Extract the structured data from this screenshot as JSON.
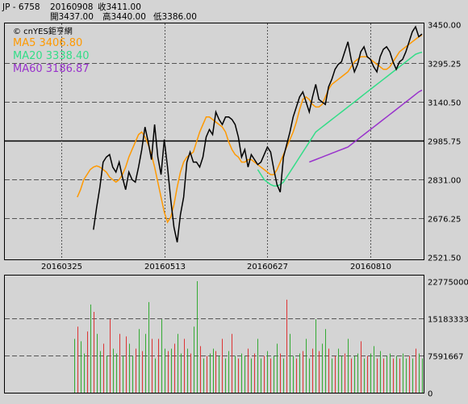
{
  "header": {
    "symbol": "JP - 6758",
    "date": "20160908",
    "close": "收3411.00",
    "open": "開3437.00",
    "high": "高3440.00",
    "low": "低3386.00"
  },
  "legend": {
    "source": "© cnYES鉅亨網",
    "ma5": "MA5 3406.80",
    "ma20": "MA20 3338.40",
    "ma60": "MA60 3186.87"
  },
  "colors": {
    "price": "#000000",
    "ma5": "#ff9900",
    "ma20": "#33dd88",
    "ma60": "#9933cc",
    "volume_up": "#dd3333",
    "volume_down": "#33aa33",
    "background": "#d4d4d4"
  },
  "chart_data": [
    {
      "type": "line",
      "yticks": [
        "3450.00",
        "3295.25",
        "3140.50",
        "2985.75",
        "2831.00",
        "2676.25",
        "2521.50"
      ],
      "ylim": [
        2521.5,
        3450
      ],
      "xticks": [
        "20160325",
        "20160513",
        "20160627",
        "20160810"
      ],
      "xtick_index": [
        17,
        49,
        81,
        113
      ],
      "n_points": 130,
      "series": [
        {
          "name": "MA5",
          "values": [
            2760,
            2790,
            2830,
            2850,
            2870,
            2880,
            2885,
            2880,
            2870,
            2860,
            2840,
            2830,
            2820,
            2830,
            2850,
            2880,
            2920,
            2950,
            2980,
            3010,
            3020,
            3000,
            2970,
            2930,
            2880,
            2820,
            2760,
            2700,
            2660,
            2680,
            2730,
            2800,
            2860,
            2900,
            2920,
            2930,
            2940,
            2980,
            3020,
            3050,
            3080,
            3080,
            3070,
            3060,
            3050,
            3040,
            3020,
            2980,
            2950,
            2930,
            2920,
            2900,
            2900,
            2910,
            2910,
            2900,
            2890,
            2880,
            2870,
            2860,
            2850,
            2850,
            2870,
            2900,
            2930,
            2960,
            2990,
            3020,
            3060,
            3110,
            3150,
            3160,
            3150,
            3130,
            3120,
            3120,
            3130,
            3160,
            3190,
            3210,
            3220,
            3230,
            3240,
            3250,
            3260,
            3280,
            3300,
            3310,
            3320,
            3320,
            3320,
            3310,
            3300,
            3290,
            3280,
            3270,
            3270,
            3280,
            3300,
            3320,
            3340,
            3350,
            3360,
            3370,
            3380,
            3390,
            3400,
            3406.8
          ]
        },
        {
          "name": "MA20",
          "values": [
            2870,
            2850,
            2830,
            2820,
            2810,
            2805,
            2805,
            2810,
            2820,
            2840,
            2860,
            2880,
            2900,
            2920,
            2940,
            2960,
            2980,
            3000,
            3020,
            3030,
            3040,
            3050,
            3060,
            3070,
            3080,
            3090,
            3100,
            3110,
            3120,
            3130,
            3140,
            3150,
            3160,
            3170,
            3180,
            3190,
            3200,
            3210,
            3220,
            3230,
            3240,
            3250,
            3260,
            3270,
            3280,
            3290,
            3300,
            3310,
            3320,
            3330,
            3335,
            3338.4
          ]
        },
        {
          "name": "MA60",
          "values": [
            2900,
            2905,
            2910,
            2915,
            2920,
            2925,
            2930,
            2935,
            2940,
            2945,
            2950,
            2955,
            2960,
            2970,
            2980,
            2990,
            3000,
            3010,
            3020,
            3030,
            3040,
            3050,
            3060,
            3070,
            3080,
            3090,
            3100,
            3110,
            3120,
            3130,
            3140,
            3150,
            3160,
            3170,
            3180,
            3186.87
          ]
        },
        {
          "name": "Price",
          "values": [
            2630,
            2720,
            2800,
            2900,
            2920,
            2930,
            2880,
            2860,
            2900,
            2840,
            2790,
            2860,
            2830,
            2820,
            2880,
            2950,
            3040,
            2980,
            2910,
            3050,
            2920,
            2850,
            2990,
            2880,
            2750,
            2640,
            2580,
            2690,
            2760,
            2900,
            2940,
            2900,
            2900,
            2880,
            2920,
            3000,
            3030,
            3010,
            3100,
            3070,
            3050,
            3080,
            3080,
            3070,
            3050,
            3000,
            2920,
            2950,
            2880,
            2930,
            2910,
            2890,
            2900,
            2930,
            2960,
            2940,
            2870,
            2810,
            2780,
            2920,
            2970,
            3020,
            3080,
            3120,
            3160,
            3180,
            3140,
            3100,
            3160,
            3210,
            3150,
            3140,
            3130,
            3200,
            3230,
            3270,
            3290,
            3300,
            3340,
            3380,
            3310,
            3260,
            3290,
            3340,
            3360,
            3320,
            3310,
            3280,
            3260,
            3320,
            3350,
            3360,
            3340,
            3300,
            3270,
            3300,
            3310,
            3340,
            3380,
            3420,
            3440,
            3400,
            3411
          ]
        }
      ]
    },
    {
      "type": "bar",
      "yticks": [
        "22775000",
        "15183333",
        "7591667",
        "0"
      ],
      "ylim": [
        0,
        22775000
      ],
      "n_points": 130,
      "values": [
        11000000,
        13500000,
        10500000,
        8000000,
        12500000,
        18000000,
        16500000,
        12000000,
        8500000,
        10000000,
        7500000,
        15000000,
        9000000,
        8000000,
        12000000,
        7500000,
        11500000,
        10000000,
        7500000,
        9000000,
        13000000,
        8500000,
        12000000,
        18500000,
        11000000,
        7000000,
        11000000,
        15000000,
        9000000,
        8500000,
        9000000,
        10000000,
        12000000,
        8000000,
        11000000,
        9000000,
        8000000,
        13500000,
        22775000,
        9500000,
        7000000,
        7500000,
        8000000,
        9000000,
        8500000,
        7500000,
        11000000,
        7000000,
        8500000,
        12000000,
        7500000,
        7000000,
        8000000,
        7500000,
        9000000,
        7000000,
        8000000,
        11000000,
        7000000,
        7500000,
        8500000,
        7000000,
        7500000,
        10000000,
        8000000,
        7000000,
        19000000,
        12000000,
        7500000,
        7000000,
        8000000,
        8500000,
        11000000,
        7000000,
        9000000,
        15000000,
        8500000,
        10000000,
        13000000,
        9000000,
        7000000,
        7500000,
        9000000,
        7500000,
        8000000,
        11000000,
        7000000,
        7500000,
        8000000,
        10500000,
        7000000,
        7500000,
        8000000,
        9500000,
        7000000,
        8500000,
        7000000,
        7500000,
        8000000,
        7000000,
        7500000,
        7000000,
        8000000,
        7000000,
        7500000,
        7000000,
        9000000,
        8000000,
        7000000
      ]
    }
  ]
}
